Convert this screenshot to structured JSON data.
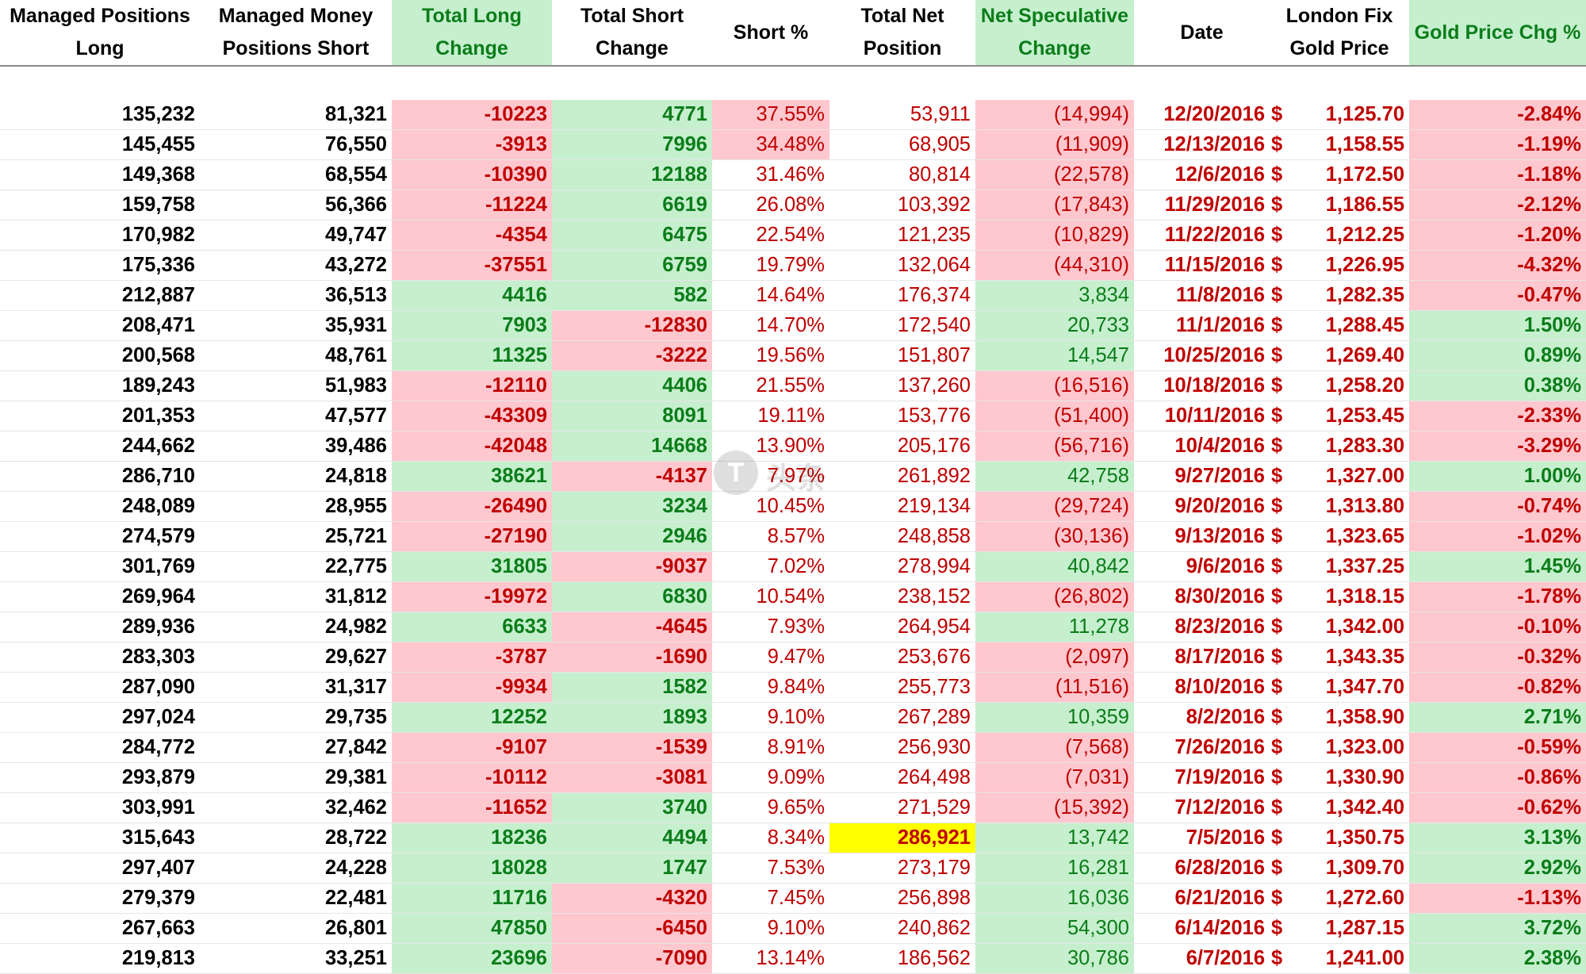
{
  "headers": [
    {
      "line1": "Managed Positions",
      "line2": "Long"
    },
    {
      "line1": "Managed Money",
      "line2": "Positions Short"
    },
    {
      "line1": "Total Long",
      "line2": "Change"
    },
    {
      "line1": "Total Short",
      "line2": "Change"
    },
    {
      "line1": "Short %",
      "line2": ""
    },
    {
      "line1": "Total Net",
      "line2": "Position"
    },
    {
      "line1": "Net Speculative",
      "line2": "Change"
    },
    {
      "line1": "Date",
      "line2": ""
    },
    {
      "line1": "London Fix",
      "line2": "Gold Price"
    },
    {
      "line1": "Gold Price Chg %",
      "line2": ""
    }
  ],
  "watermark": {
    "text": "头条",
    "mark": "T"
  },
  "colors": {
    "positive_fill": "#c6efce",
    "negative_fill": "#ffc7ce",
    "positive_text": "#0b7d1a",
    "negative_text": "#c00000",
    "highlight": "#ffff00"
  },
  "rows": [
    {
      "long": "135,232",
      "short": "81,321",
      "long_chg": "-10223",
      "short_chg": "4771",
      "short_pct": "37.55%",
      "net": "53,911",
      "spec_chg": "(14,994)",
      "date": "12/20/2016",
      "currency": "$",
      "price": "1,125.70",
      "price_chg": "-2.84%"
    },
    {
      "long": "145,455",
      "short": "76,550",
      "long_chg": "-3913",
      "short_chg": "7996",
      "short_pct": "34.48%",
      "net": "68,905",
      "spec_chg": "(11,909)",
      "date": "12/13/2016",
      "currency": "$",
      "price": "1,158.55",
      "price_chg": "-1.19%"
    },
    {
      "long": "149,368",
      "short": "68,554",
      "long_chg": "-10390",
      "short_chg": "12188",
      "short_pct": "31.46%",
      "net": "80,814",
      "spec_chg": "(22,578)",
      "date": "12/6/2016",
      "currency": "$",
      "price": "1,172.50",
      "price_chg": "-1.18%"
    },
    {
      "long": "159,758",
      "short": "56,366",
      "long_chg": "-11224",
      "short_chg": "6619",
      "short_pct": "26.08%",
      "net": "103,392",
      "spec_chg": "(17,843)",
      "date": "11/29/2016",
      "currency": "$",
      "price": "1,186.55",
      "price_chg": "-2.12%"
    },
    {
      "long": "170,982",
      "short": "49,747",
      "long_chg": "-4354",
      "short_chg": "6475",
      "short_pct": "22.54%",
      "net": "121,235",
      "spec_chg": "(10,829)",
      "date": "11/22/2016",
      "currency": "$",
      "price": "1,212.25",
      "price_chg": "-1.20%"
    },
    {
      "long": "175,336",
      "short": "43,272",
      "long_chg": "-37551",
      "short_chg": "6759",
      "short_pct": "19.79%",
      "net": "132,064",
      "spec_chg": "(44,310)",
      "date": "11/15/2016",
      "currency": "$",
      "price": "1,226.95",
      "price_chg": "-4.32%"
    },
    {
      "long": "212,887",
      "short": "36,513",
      "long_chg": "4416",
      "short_chg": "582",
      "short_pct": "14.64%",
      "net": "176,374",
      "spec_chg": "3,834",
      "date": "11/8/2016",
      "currency": "$",
      "price": "1,282.35",
      "price_chg": "-0.47%"
    },
    {
      "long": "208,471",
      "short": "35,931",
      "long_chg": "7903",
      "short_chg": "-12830",
      "short_pct": "14.70%",
      "net": "172,540",
      "spec_chg": "20,733",
      "date": "11/1/2016",
      "currency": "$",
      "price": "1,288.45",
      "price_chg": "1.50%"
    },
    {
      "long": "200,568",
      "short": "48,761",
      "long_chg": "11325",
      "short_chg": "-3222",
      "short_pct": "19.56%",
      "net": "151,807",
      "spec_chg": "14,547",
      "date": "10/25/2016",
      "currency": "$",
      "price": "1,269.40",
      "price_chg": "0.89%"
    },
    {
      "long": "189,243",
      "short": "51,983",
      "long_chg": "-12110",
      "short_chg": "4406",
      "short_pct": "21.55%",
      "net": "137,260",
      "spec_chg": "(16,516)",
      "date": "10/18/2016",
      "currency": "$",
      "price": "1,258.20",
      "price_chg": "0.38%"
    },
    {
      "long": "201,353",
      "short": "47,577",
      "long_chg": "-43309",
      "short_chg": "8091",
      "short_pct": "19.11%",
      "net": "153,776",
      "spec_chg": "(51,400)",
      "date": "10/11/2016",
      "currency": "$",
      "price": "1,253.45",
      "price_chg": "-2.33%"
    },
    {
      "long": "244,662",
      "short": "39,486",
      "long_chg": "-42048",
      "short_chg": "14668",
      "short_pct": "13.90%",
      "net": "205,176",
      "spec_chg": "(56,716)",
      "date": "10/4/2016",
      "currency": "$",
      "price": "1,283.30",
      "price_chg": "-3.29%"
    },
    {
      "long": "286,710",
      "short": "24,818",
      "long_chg": "38621",
      "short_chg": "-4137",
      "short_pct": "7.97%",
      "net": "261,892",
      "spec_chg": "42,758",
      "date": "9/27/2016",
      "currency": "$",
      "price": "1,327.00",
      "price_chg": "1.00%"
    },
    {
      "long": "248,089",
      "short": "28,955",
      "long_chg": "-26490",
      "short_chg": "3234",
      "short_pct": "10.45%",
      "net": "219,134",
      "spec_chg": "(29,724)",
      "date": "9/20/2016",
      "currency": "$",
      "price": "1,313.80",
      "price_chg": "-0.74%"
    },
    {
      "long": "274,579",
      "short": "25,721",
      "long_chg": "-27190",
      "short_chg": "2946",
      "short_pct": "8.57%",
      "net": "248,858",
      "spec_chg": "(30,136)",
      "date": "9/13/2016",
      "currency": "$",
      "price": "1,323.65",
      "price_chg": "-1.02%"
    },
    {
      "long": "301,769",
      "short": "22,775",
      "long_chg": "31805",
      "short_chg": "-9037",
      "short_pct": "7.02%",
      "net": "278,994",
      "spec_chg": "40,842",
      "date": "9/6/2016",
      "currency": "$",
      "price": "1,337.25",
      "price_chg": "1.45%"
    },
    {
      "long": "269,964",
      "short": "31,812",
      "long_chg": "-19972",
      "short_chg": "6830",
      "short_pct": "10.54%",
      "net": "238,152",
      "spec_chg": "(26,802)",
      "date": "8/30/2016",
      "currency": "$",
      "price": "1,318.15",
      "price_chg": "-1.78%"
    },
    {
      "long": "289,936",
      "short": "24,982",
      "long_chg": "6633",
      "short_chg": "-4645",
      "short_pct": "7.93%",
      "net": "264,954",
      "spec_chg": "11,278",
      "date": "8/23/2016",
      "currency": "$",
      "price": "1,342.00",
      "price_chg": "-0.10%"
    },
    {
      "long": "283,303",
      "short": "29,627",
      "long_chg": "-3787",
      "short_chg": "-1690",
      "short_pct": "9.47%",
      "net": "253,676",
      "spec_chg": "(2,097)",
      "date": "8/17/2016",
      "currency": "$",
      "price": "1,343.35",
      "price_chg": "-0.32%"
    },
    {
      "long": "287,090",
      "short": "31,317",
      "long_chg": "-9934",
      "short_chg": "1582",
      "short_pct": "9.84%",
      "net": "255,773",
      "spec_chg": "(11,516)",
      "date": "8/10/2016",
      "currency": "$",
      "price": "1,347.70",
      "price_chg": "-0.82%"
    },
    {
      "long": "297,024",
      "short": "29,735",
      "long_chg": "12252",
      "short_chg": "1893",
      "short_pct": "9.10%",
      "net": "267,289",
      "spec_chg": "10,359",
      "date": "8/2/2016",
      "currency": "$",
      "price": "1,358.90",
      "price_chg": "2.71%"
    },
    {
      "long": "284,772",
      "short": "27,842",
      "long_chg": "-9107",
      "short_chg": "-1539",
      "short_pct": "8.91%",
      "net": "256,930",
      "spec_chg": "(7,568)",
      "date": "7/26/2016",
      "currency": "$",
      "price": "1,323.00",
      "price_chg": "-0.59%"
    },
    {
      "long": "293,879",
      "short": "29,381",
      "long_chg": "-10112",
      "short_chg": "-3081",
      "short_pct": "9.09%",
      "net": "264,498",
      "spec_chg": "(7,031)",
      "date": "7/19/2016",
      "currency": "$",
      "price": "1,330.90",
      "price_chg": "-0.86%"
    },
    {
      "long": "303,991",
      "short": "32,462",
      "long_chg": "-11652",
      "short_chg": "3740",
      "short_pct": "9.65%",
      "net": "271,529",
      "spec_chg": "(15,392)",
      "date": "7/12/2016",
      "currency": "$",
      "price": "1,342.40",
      "price_chg": "-0.62%"
    },
    {
      "long": "315,643",
      "short": "28,722",
      "long_chg": "18236",
      "short_chg": "4494",
      "short_pct": "8.34%",
      "net": "286,921",
      "net_highlight": true,
      "spec_chg": "13,742",
      "date": "7/5/2016",
      "currency": "$",
      "price": "1,350.75",
      "price_chg": "3.13%"
    },
    {
      "long": "297,407",
      "short": "24,228",
      "long_chg": "18028",
      "short_chg": "1747",
      "short_pct": "7.53%",
      "net": "273,179",
      "spec_chg": "16,281",
      "date": "6/28/2016",
      "currency": "$",
      "price": "1,309.70",
      "price_chg": "2.92%"
    },
    {
      "long": "279,379",
      "short": "22,481",
      "long_chg": "11716",
      "short_chg": "-4320",
      "short_pct": "7.45%",
      "net": "256,898",
      "spec_chg": "16,036",
      "date": "6/21/2016",
      "currency": "$",
      "price": "1,272.60",
      "price_chg": "-1.13%"
    },
    {
      "long": "267,663",
      "short": "26,801",
      "long_chg": "47850",
      "short_chg": "-6450",
      "short_pct": "9.10%",
      "net": "240,862",
      "spec_chg": "54,300",
      "date": "6/14/2016",
      "currency": "$",
      "price": "1,287.15",
      "price_chg": "3.72%"
    },
    {
      "long": "219,813",
      "short": "33,251",
      "long_chg": "23696",
      "short_chg": "-7090",
      "short_pct": "13.14%",
      "net": "186,562",
      "spec_chg": "30,786",
      "date": "6/7/2016",
      "currency": "$",
      "price": "1,241.00",
      "price_chg": "2.38%"
    }
  ]
}
